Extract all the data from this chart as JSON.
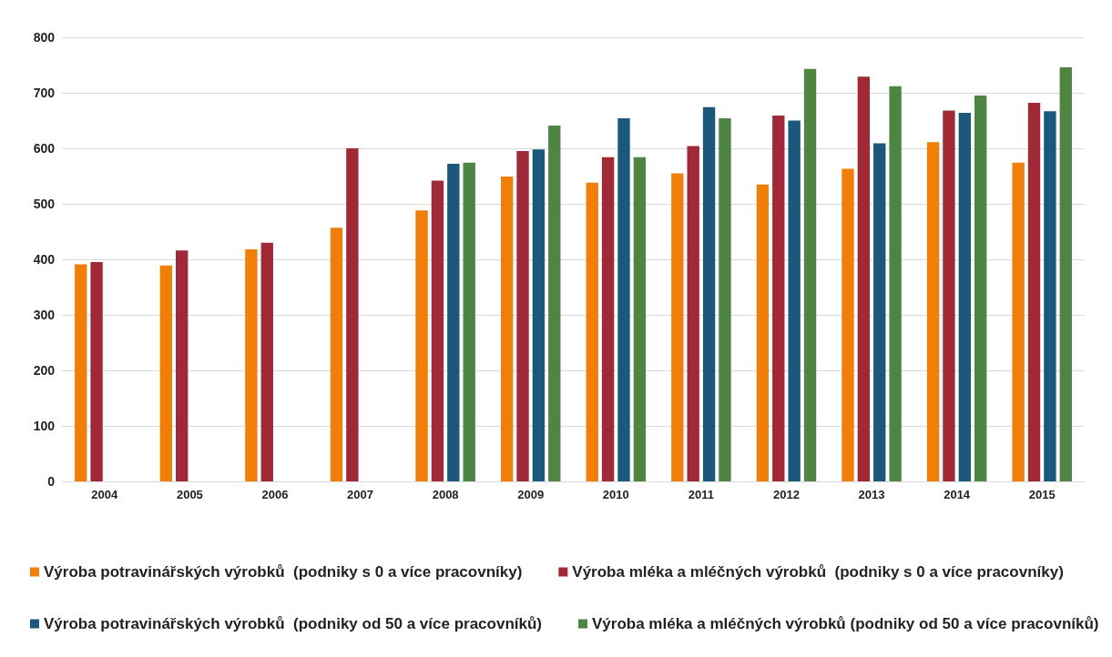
{
  "chart_data": {
    "type": "bar",
    "categories": [
      "2004",
      "2005",
      "2006",
      "2007",
      "2008",
      "2009",
      "2010",
      "2011",
      "2012",
      "2013",
      "2014",
      "2015"
    ],
    "series": [
      {
        "name": "Výroba potravinářských výrobků  (podniky s 0 a více pracovníky)",
        "color": "#f07f09",
        "values": [
          391,
          389,
          418,
          457,
          488,
          549,
          538,
          555,
          535,
          563,
          611,
          574
        ]
      },
      {
        "name": "Výroba mléka a mléčných výrobků  (podniky s 0 a více pracovníky)",
        "color": "#9f2936",
        "values": [
          395,
          416,
          430,
          600,
          542,
          595,
          584,
          604,
          659,
          729,
          668,
          682
        ]
      },
      {
        "name": "Výroba potravinářských výrobků  (podniky od 50 a více pracovníků)",
        "color": "#1b587c",
        "values": [
          null,
          null,
          null,
          null,
          572,
          598,
          654,
          674,
          650,
          609,
          664,
          667
        ]
      },
      {
        "name": "Výroba mléka a mléčných výrobků (podniky od 50 a více pracovníků)",
        "color": "#4e8542",
        "values": [
          null,
          null,
          null,
          null,
          574,
          641,
          584,
          654,
          743,
          712,
          695,
          746
        ]
      }
    ],
    "ylim": [
      0,
      800
    ],
    "yticks": [
      0,
      100,
      200,
      300,
      400,
      500,
      600,
      700,
      800
    ],
    "grid": "y",
    "legend": "bottom"
  }
}
